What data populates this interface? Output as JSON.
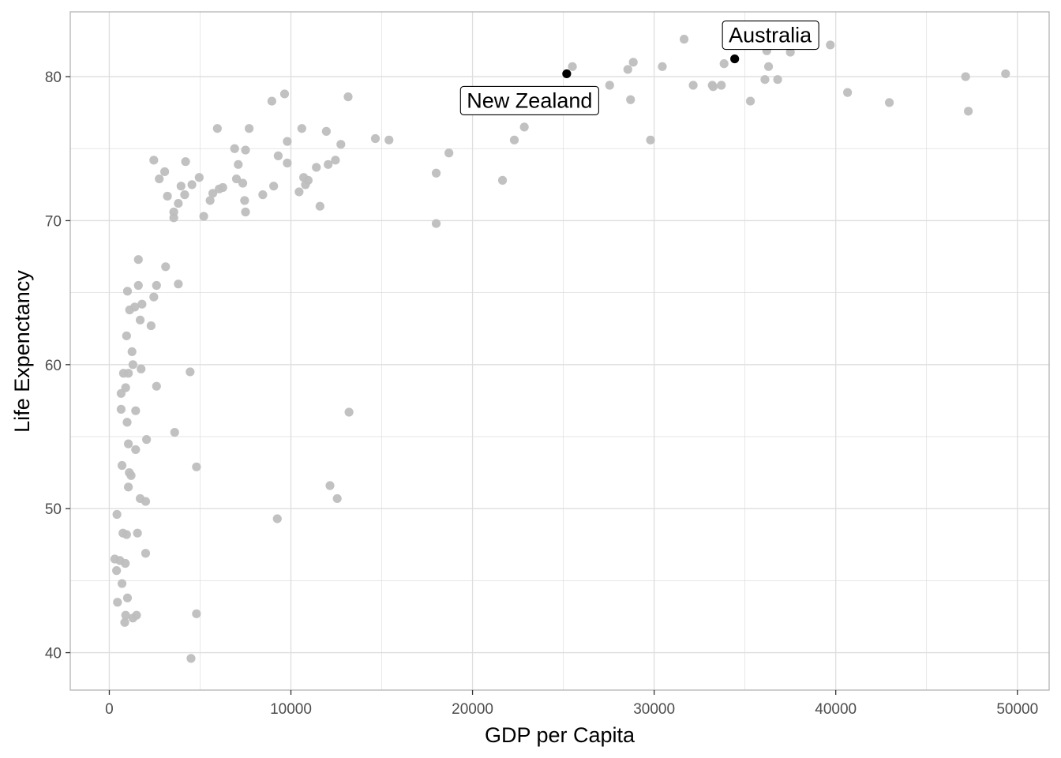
{
  "chart_data": {
    "type": "scatter",
    "title": "",
    "xlabel": "GDP per Capita",
    "ylabel": "Life Expenctancy",
    "xlim": [
      -2150,
      51750
    ],
    "ylim": [
      37.4,
      84.5
    ],
    "x_ticks": [
      0,
      10000,
      20000,
      30000,
      40000,
      50000
    ],
    "x_tick_labels": [
      "0",
      "10000",
      "20000",
      "30000",
      "40000",
      "50000"
    ],
    "y_ticks": [
      40,
      50,
      60,
      70,
      80
    ],
    "y_tick_labels": [
      "40",
      "50",
      "60",
      "70",
      "80"
    ],
    "grid": true,
    "legend": "none",
    "colors": {
      "background_points": "#bebebe",
      "highlight_points": "#000000",
      "grid": "#dedede",
      "panel_border": "#b3b3b3"
    },
    "series": [
      {
        "points": [
          [
            300,
            46.5
          ],
          [
            400,
            45.7
          ],
          [
            420,
            49.6
          ],
          [
            450,
            43.5
          ],
          [
            580,
            46.4
          ],
          [
            650,
            56.9
          ],
          [
            650,
            58.0
          ],
          [
            700,
            53.0
          ],
          [
            700,
            44.8
          ],
          [
            750,
            48.3
          ],
          [
            780,
            59.4
          ],
          [
            850,
            42.1
          ],
          [
            880,
            46.2
          ],
          [
            900,
            42.6
          ],
          [
            900,
            58.4
          ],
          [
            950,
            48.2
          ],
          [
            950,
            62.0
          ],
          [
            980,
            56.0
          ],
          [
            1000,
            65.1
          ],
          [
            1000,
            43.8
          ],
          [
            1050,
            54.5
          ],
          [
            1050,
            59.4
          ],
          [
            1050,
            51.5
          ],
          [
            1100,
            52.5
          ],
          [
            1120,
            63.8
          ],
          [
            1200,
            52.3
          ],
          [
            1250,
            60.9
          ],
          [
            1300,
            42.4
          ],
          [
            1300,
            60.0
          ],
          [
            1400,
            64.0
          ],
          [
            1450,
            56.8
          ],
          [
            1450,
            54.1
          ],
          [
            1500,
            42.6
          ],
          [
            1550,
            48.3
          ],
          [
            1600,
            67.3
          ],
          [
            1600,
            65.5
          ],
          [
            1700,
            50.7
          ],
          [
            1700,
            63.1
          ],
          [
            1750,
            59.7
          ],
          [
            1800,
            64.2
          ],
          [
            2000,
            46.9
          ],
          [
            2000,
            50.5
          ],
          [
            2050,
            54.8
          ],
          [
            2300,
            62.7
          ],
          [
            2450,
            64.7
          ],
          [
            2450,
            74.2
          ],
          [
            2600,
            65.5
          ],
          [
            2600,
            58.5
          ],
          [
            2750,
            72.9
          ],
          [
            3050,
            73.4
          ],
          [
            3100,
            66.8
          ],
          [
            3200,
            71.7
          ],
          [
            3550,
            70.6
          ],
          [
            3550,
            70.2
          ],
          [
            3600,
            55.3
          ],
          [
            3800,
            71.2
          ],
          [
            3800,
            65.6
          ],
          [
            3950,
            72.4
          ],
          [
            4150,
            71.8
          ],
          [
            4200,
            74.1
          ],
          [
            4450,
            59.5
          ],
          [
            4500,
            39.6
          ],
          [
            4550,
            72.5
          ],
          [
            4800,
            42.7
          ],
          [
            4800,
            52.9
          ],
          [
            4950,
            73.0
          ],
          [
            5200,
            70.3
          ],
          [
            5550,
            71.4
          ],
          [
            5700,
            71.9
          ],
          [
            5950,
            76.4
          ],
          [
            6050,
            72.2
          ],
          [
            6250,
            72.3
          ],
          [
            6900,
            75.0
          ],
          [
            7000,
            72.9
          ],
          [
            7100,
            73.9
          ],
          [
            7350,
            72.6
          ],
          [
            7450,
            71.4
          ],
          [
            7500,
            74.9
          ],
          [
            7500,
            70.6
          ],
          [
            7700,
            76.4
          ],
          [
            8450,
            71.8
          ],
          [
            8950,
            78.3
          ],
          [
            9050,
            72.4
          ],
          [
            9250,
            49.3
          ],
          [
            9300,
            74.5
          ],
          [
            9650,
            78.8
          ],
          [
            9800,
            75.5
          ],
          [
            9800,
            74.0
          ],
          [
            10450,
            72.0
          ],
          [
            10600,
            76.4
          ],
          [
            10700,
            73.0
          ],
          [
            10800,
            72.5
          ],
          [
            10950,
            72.8
          ],
          [
            11400,
            73.7
          ],
          [
            11600,
            71.0
          ],
          [
            11950,
            76.2
          ],
          [
            12050,
            73.9
          ],
          [
            12150,
            51.6
          ],
          [
            12450,
            74.2
          ],
          [
            12550,
            50.7
          ],
          [
            12750,
            75.3
          ],
          [
            13150,
            78.6
          ],
          [
            13200,
            56.7
          ],
          [
            14650,
            75.7
          ],
          [
            15400,
            75.6
          ],
          [
            18000,
            73.3
          ],
          [
            18000,
            69.8
          ],
          [
            18700,
            74.7
          ],
          [
            21650,
            72.8
          ],
          [
            22300,
            75.6
          ],
          [
            22850,
            76.5
          ],
          [
            25500,
            80.7
          ],
          [
            27550,
            79.4
          ],
          [
            28550,
            80.5
          ],
          [
            28700,
            78.4
          ],
          [
            28850,
            81.0
          ],
          [
            29800,
            75.6
          ],
          [
            30450,
            80.7
          ],
          [
            31650,
            82.6
          ],
          [
            32150,
            79.4
          ],
          [
            33200,
            79.4
          ],
          [
            33250,
            79.3
          ],
          [
            33700,
            79.4
          ],
          [
            33850,
            80.9
          ],
          [
            35300,
            78.3
          ],
          [
            36100,
            79.8
          ],
          [
            36200,
            81.8
          ],
          [
            36300,
            80.7
          ],
          [
            36800,
            79.8
          ],
          [
            37500,
            81.7
          ],
          [
            39700,
            82.2
          ],
          [
            40650,
            78.9
          ],
          [
            42950,
            78.2
          ],
          [
            47150,
            80.0
          ],
          [
            47300,
            77.6
          ],
          [
            49350,
            80.2
          ]
        ]
      },
      {
        "points": [
          [
            25185,
            80.2
          ],
          [
            34435,
            81.235
          ]
        ],
        "labels": [
          "New Zealand",
          "Australia"
        ]
      }
    ]
  }
}
